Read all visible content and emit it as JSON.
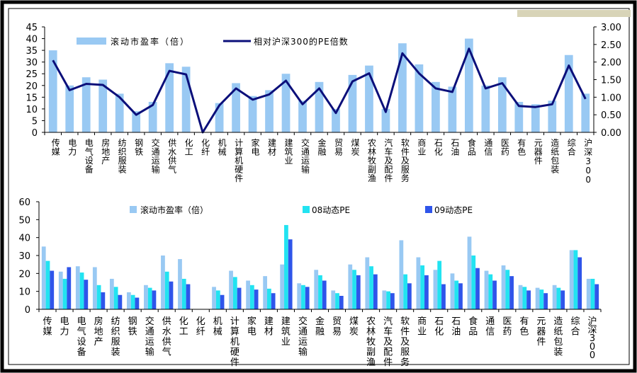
{
  "colors": {
    "bar_pe": "#99c9f3",
    "line_relative": "#0b0f7a",
    "bar_08": "#22e3f1",
    "bar_09": "#2f55ea",
    "frame": "#000000",
    "accent_band": "#d8d4b8"
  },
  "categories": [
    "传媒",
    "电力",
    "电气设备",
    "房地产",
    "纺织服装",
    "钢铁",
    "交通运输",
    "供水供气",
    "化工",
    "化纤",
    "机械",
    "计算机硬件",
    "家电",
    "建材",
    "建筑业",
    "交通运输",
    "金融",
    "贸易",
    "煤炭",
    "农林牧副渔",
    "汽车及配件",
    "软件及服务",
    "商业",
    "石化",
    "石油",
    "食品",
    "通信",
    "医药",
    "有色",
    "元器件",
    "造纸包装",
    "综合",
    "沪深300"
  ],
  "chart_data": [
    {
      "type": "bar+line",
      "legend_position": "top",
      "grid": false,
      "ylim_left": [
        0,
        45
      ],
      "yticks_left": [
        "0",
        "5",
        "10",
        "15",
        "20",
        "25",
        "30",
        "35",
        "40",
        "45"
      ],
      "ylim_right": [
        0,
        3.0
      ],
      "yticks_right": [
        "0.00",
        "0.50",
        "1.00",
        "1.50",
        "2.00",
        "2.50",
        "3.00"
      ],
      "series": [
        {
          "name": "滚动市盈率（倍）",
          "kind": "bar",
          "axis": "left",
          "values": [
            35,
            20,
            23.5,
            22.5,
            16.5,
            9,
            13,
            29.5,
            28,
            0,
            12.5,
            21,
            15.5,
            18,
            25,
            13.5,
            21.5,
            10,
            24.5,
            28.5,
            10,
            38,
            29,
            21.5,
            19.5,
            40,
            20,
            23.5,
            13,
            12,
            13.5,
            33,
            16.5
          ]
        },
        {
          "name": "相对沪深300的PE倍数",
          "kind": "line",
          "axis": "right",
          "values": [
            2.05,
            1.2,
            1.38,
            1.35,
            1.0,
            0.5,
            0.78,
            1.75,
            1.65,
            0.0,
            0.77,
            1.25,
            0.93,
            1.08,
            1.47,
            0.8,
            1.25,
            0.55,
            1.45,
            1.68,
            0.58,
            2.25,
            1.68,
            1.25,
            1.15,
            2.38,
            1.25,
            1.4,
            0.75,
            0.72,
            0.8,
            1.9,
            0.95
          ]
        }
      ]
    },
    {
      "type": "bar",
      "legend_position": "top",
      "grid": false,
      "ylim": [
        0,
        60
      ],
      "yticks": [
        "0",
        "10",
        "20",
        "30",
        "40",
        "50",
        "60"
      ],
      "series": [
        {
          "name": "滚动市盈率（倍）",
          "values": [
            35,
            21,
            24,
            23.5,
            17,
            9.5,
            13.5,
            30,
            28,
            0,
            12.5,
            21.5,
            16,
            18.5,
            25,
            14.5,
            22,
            10.5,
            25,
            29,
            10.5,
            38.5,
            29,
            22,
            20,
            40.5,
            21.5,
            24.5,
            13.5,
            12,
            13.5,
            33,
            17
          ]
        },
        {
          "name": "08动态PE",
          "values": [
            27,
            17,
            20.5,
            13.5,
            12.5,
            8,
            12,
            21,
            17,
            0,
            10.5,
            18,
            13.5,
            11.5,
            47,
            13.5,
            19,
            9,
            22,
            24,
            10,
            19.5,
            24.5,
            27,
            16,
            30,
            19.5,
            22,
            12.5,
            11,
            12,
            33,
            17
          ]
        },
        {
          "name": "09动态PE",
          "values": [
            21.5,
            23.5,
            16.5,
            9.5,
            8,
            6.5,
            10.5,
            15.5,
            14,
            0,
            8,
            12,
            11,
            9,
            39,
            12.5,
            16,
            7.5,
            19,
            19.5,
            9,
            14.5,
            19,
            14,
            14.5,
            23,
            16,
            18.5,
            10.5,
            9,
            10.5,
            29,
            14
          ]
        }
      ]
    }
  ]
}
